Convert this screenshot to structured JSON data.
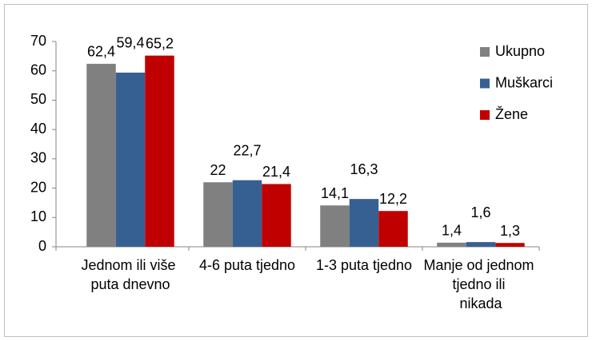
{
  "chart_data": {
    "type": "bar",
    "categories": [
      "Jednom ili više puta dnevno",
      "4-6 puta tjedno",
      "1-3 puta tjedno",
      "Manje od jednom tjedno ili nikada"
    ],
    "series": [
      {
        "name": "Ukupno",
        "color": "#808080",
        "values": [
          62.4,
          22,
          14.1,
          1.4
        ],
        "value_labels": [
          "62,4",
          "22",
          "14,1",
          "1,4"
        ]
      },
      {
        "name": "Muškarci",
        "color": "#376092",
        "values": [
          59.4,
          22.7,
          16.3,
          1.6
        ],
        "value_labels": [
          "59,4",
          "22,7",
          "16,3",
          "1,6"
        ]
      },
      {
        "name": "Žene",
        "color": "#c00000",
        "values": [
          65.2,
          21.4,
          12.2,
          1.3
        ],
        "value_labels": [
          "65,2",
          "21,4",
          "12,2",
          "1,3"
        ]
      }
    ],
    "ylim": [
      0,
      70
    ],
    "yticks": [
      0,
      10,
      20,
      30,
      40,
      50,
      60,
      70
    ],
    "legend": "right"
  }
}
